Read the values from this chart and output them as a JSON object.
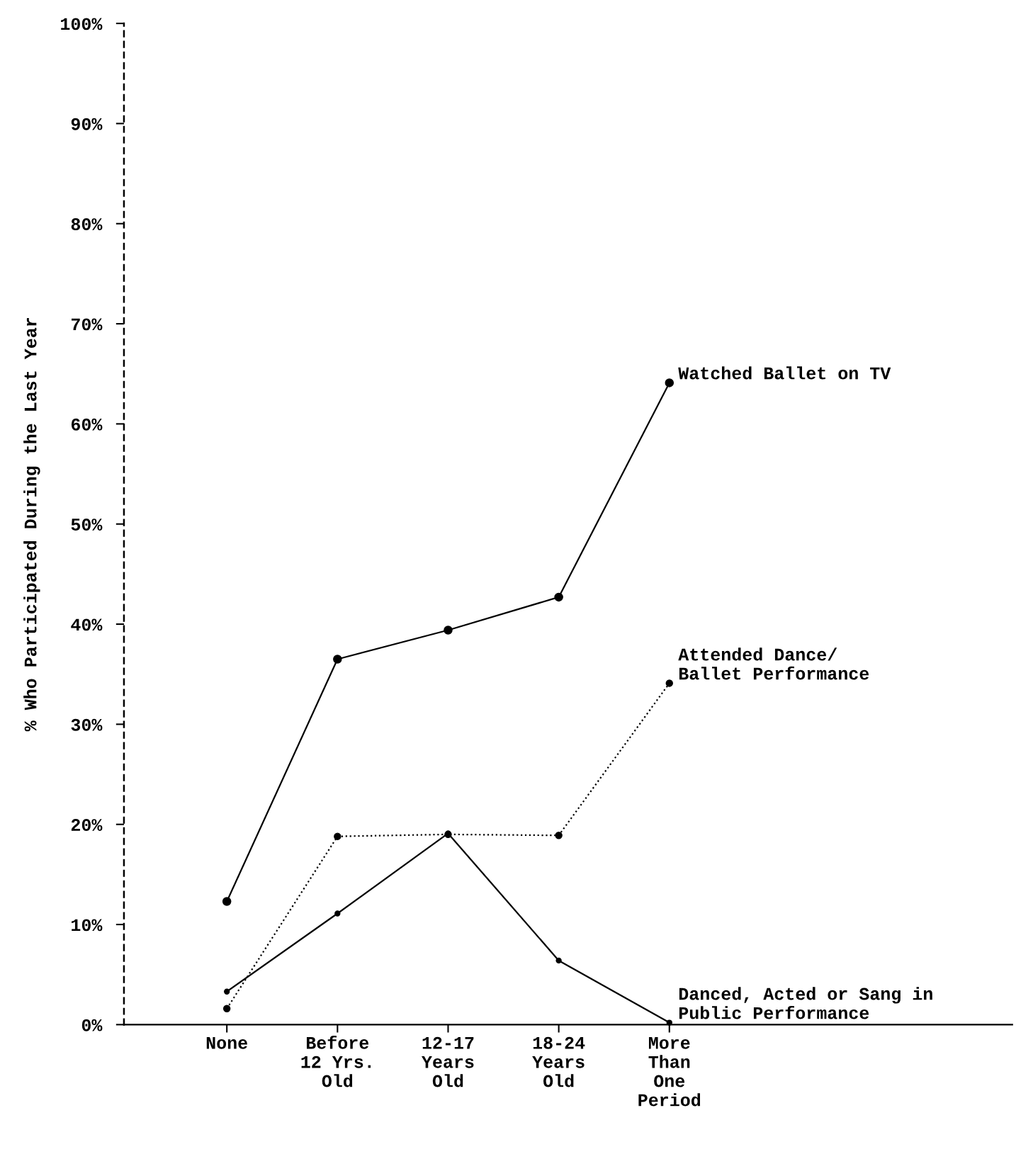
{
  "chart_data": {
    "type": "line",
    "ylabel": "% Who Participated During the Last Year",
    "categories": [
      "None",
      "Before\n12 Yrs.\nOld",
      "12-17\nYears\nOld",
      "18-24\nYears\nOld",
      "More\nThan\nOne\nPeriod"
    ],
    "series": [
      {
        "name": "Watched Ballet on TV",
        "color": "#000000",
        "line_style": "solid",
        "values": [
          12.3,
          36.5,
          39.4,
          42.7,
          64.1
        ]
      },
      {
        "name": "Attended Dance/\nBallet Performance",
        "color": "#000000",
        "line_style": "dotted",
        "values": [
          1.6,
          18.8,
          19.0,
          18.9,
          34.1
        ]
      },
      {
        "name": "Danced, Acted or Sang in\nPublic Performance",
        "color": "#000000",
        "line_style": "solid",
        "values": [
          3.3,
          11.1,
          19.1,
          6.4,
          0.2
        ]
      }
    ],
    "ylim": [
      0,
      100
    ],
    "yticks": [
      {
        "value": 0,
        "label": "0%"
      },
      {
        "value": 10,
        "label": "10%"
      },
      {
        "value": 20,
        "label": "20%"
      },
      {
        "value": 30,
        "label": "30%"
      },
      {
        "value": 40,
        "label": "40%"
      },
      {
        "value": 50,
        "label": "50%"
      },
      {
        "value": 60,
        "label": "60%"
      },
      {
        "value": 70,
        "label": "70%"
      },
      {
        "value": 80,
        "label": "80%"
      },
      {
        "value": 90,
        "label": "90%"
      },
      {
        "value": 100,
        "label": "100%"
      }
    ],
    "grid": false,
    "legend": false,
    "marker": "circle"
  }
}
